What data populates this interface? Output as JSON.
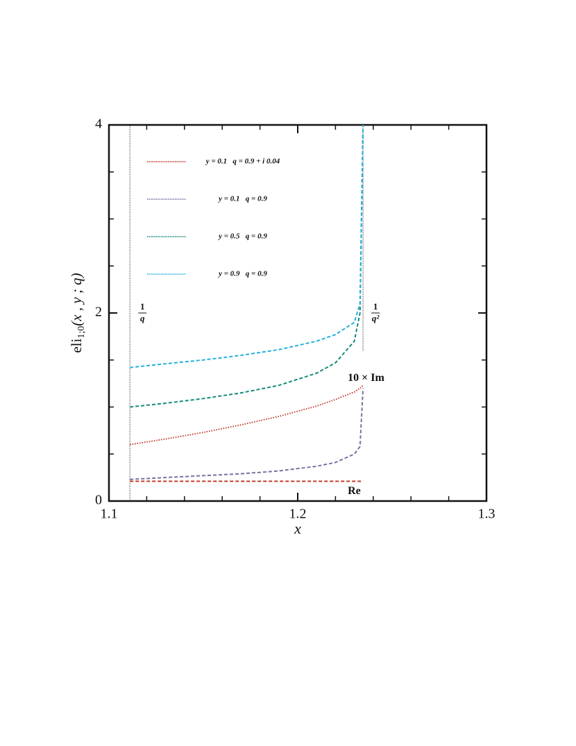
{
  "chart_data": {
    "type": "line",
    "xlabel": "x",
    "ylabel": {
      "main": "eli",
      "sub": "1;0",
      "args": "(x , y ; q)"
    },
    "xlim": [
      1.1,
      1.3
    ],
    "ylim": [
      0,
      4
    ],
    "xticks": [
      {
        "value": 1.1,
        "label": "1.1"
      },
      {
        "value": 1.2,
        "label": "1.2"
      },
      {
        "value": 1.3,
        "label": "1.3"
      }
    ],
    "yticks": [
      0,
      2,
      4
    ],
    "xminor": [
      1.12,
      1.14,
      1.16,
      1.18,
      1.22,
      1.24,
      1.26,
      1.28
    ],
    "yminor": [
      0.5,
      1,
      1.5,
      2.5,
      3,
      3.5
    ],
    "x": [
      1.1111,
      1.13,
      1.15,
      1.17,
      1.19,
      1.21,
      1.22,
      1.23,
      1.233,
      1.2346
    ],
    "series": [
      {
        "name": "y = 0.1   q = 0.9 + i 0.04",
        "color": "#c0392b",
        "style": "dotted",
        "annotation": "10 × Im",
        "values": [
          0.6,
          0.66,
          0.73,
          0.81,
          0.9,
          1.01,
          1.08,
          1.16,
          1.2,
          1.23
        ]
      },
      {
        "color": "#c0392b",
        "style": "dashed",
        "annotation": "Re",
        "values": [
          0.21,
          0.21,
          0.21,
          0.21,
          0.21,
          0.21,
          0.21,
          0.21,
          0.21,
          0.21
        ]
      },
      {
        "name": "y = 0.1   q = 0.9",
        "color": "#7b6fa0",
        "style": "dashed",
        "values": [
          0.23,
          0.25,
          0.27,
          0.29,
          0.32,
          0.37,
          0.41,
          0.5,
          0.58,
          1.2
        ]
      },
      {
        "name": "y = 0.5   q = 0.9",
        "color": "#138a7a",
        "style": "dashed",
        "values": [
          1.0,
          1.04,
          1.09,
          1.15,
          1.23,
          1.36,
          1.47,
          1.7,
          2.0,
          4.0
        ]
      },
      {
        "name": "y = 0.9   q = 0.9",
        "color": "#22b0dc",
        "style": "dashed",
        "values": [
          1.42,
          1.46,
          1.5,
          1.55,
          1.61,
          1.7,
          1.77,
          1.9,
          2.1,
          4.0
        ]
      }
    ],
    "vlines": [
      {
        "x": 1.1111,
        "ymin": 0,
        "ymax": 4,
        "num": "1",
        "den": "q"
      },
      {
        "x": 1.2346,
        "ymin": 1.6,
        "ymax": 4,
        "num": "1",
        "den": "q²"
      }
    ]
  }
}
